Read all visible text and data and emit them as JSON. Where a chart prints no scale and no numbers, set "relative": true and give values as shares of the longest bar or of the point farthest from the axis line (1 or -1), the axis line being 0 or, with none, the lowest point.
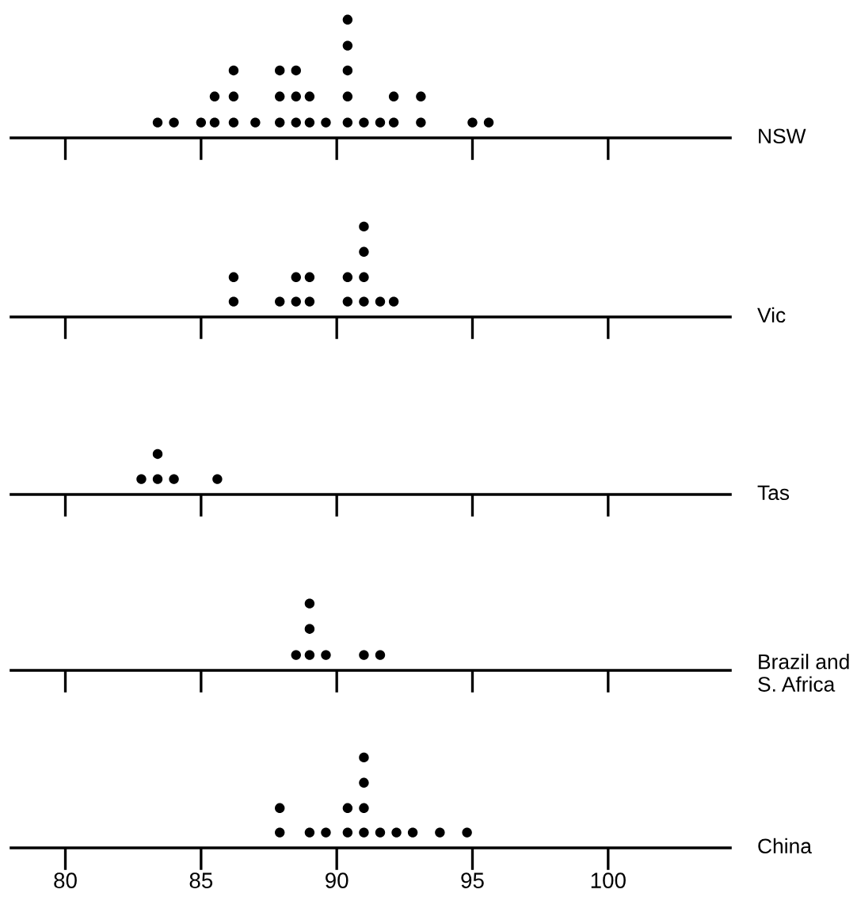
{
  "chart_data": [
    {
      "type": "scatter",
      "xlabel": "NSW",
      "relative": true,
      "marker": "circle",
      "color": "#000000",
      "xlim": [
        78,
        104.5
      ],
      "xticks": [
        {
          "value": 80,
          "label": null
        },
        {
          "value": 85,
          "label": null
        },
        {
          "value": 90,
          "label": null
        },
        {
          "value": 95,
          "label": null
        },
        {
          "value": 100,
          "label": null
        }
      ],
      "tick_labels": false,
      "x": [
        83.4,
        84.0,
        85.0,
        85.5,
        86.2,
        87.0,
        87.9,
        88.5,
        89.0,
        89.6,
        90.4,
        91.0,
        91.6,
        92.1,
        93.1,
        95.0,
        95.6,
        85.5,
        86.2,
        87.9,
        88.5,
        89.0,
        90.4,
        92.1,
        93.1,
        86.2,
        87.9,
        88.5,
        90.4,
        90.4,
        90.4
      ],
      "values": [
        0.13,
        0.13,
        0.13,
        0.13,
        0.13,
        0.13,
        0.13,
        0.13,
        0.13,
        0.13,
        0.13,
        0.13,
        0.13,
        0.13,
        0.13,
        0.13,
        0.13,
        0.35,
        0.35,
        0.35,
        0.35,
        0.35,
        0.35,
        0.35,
        0.35,
        0.57,
        0.57,
        0.57,
        0.57,
        0.78,
        1
      ]
    },
    {
      "type": "scatter",
      "xlabel": "Vic",
      "relative": true,
      "marker": "circle",
      "color": "#000000",
      "xlim": [
        78,
        104.5
      ],
      "xticks": [
        {
          "value": 80,
          "label": null
        },
        {
          "value": 85,
          "label": null
        },
        {
          "value": 90,
          "label": null
        },
        {
          "value": 95,
          "label": null
        },
        {
          "value": 100,
          "label": null
        }
      ],
      "tick_labels": false,
      "x": [
        86.2,
        87.9,
        88.5,
        89.0,
        90.4,
        91.0,
        91.6,
        92.1,
        86.2,
        88.5,
        89.0,
        90.4,
        91.0,
        91.0,
        91.0
      ],
      "values": [
        0.17,
        0.17,
        0.17,
        0.17,
        0.17,
        0.17,
        0.17,
        0.17,
        0.44,
        0.44,
        0.44,
        0.44,
        0.44,
        0.72,
        1
      ]
    },
    {
      "type": "scatter",
      "xlabel": "Tas",
      "relative": true,
      "marker": "circle",
      "color": "#000000",
      "xlim": [
        78,
        104.5
      ],
      "xticks": [
        {
          "value": 80,
          "label": null
        },
        {
          "value": 85,
          "label": null
        },
        {
          "value": 90,
          "label": null
        },
        {
          "value": 95,
          "label": null
        },
        {
          "value": 100,
          "label": null
        }
      ],
      "tick_labels": false,
      "x": [
        82.8,
        83.4,
        84.0,
        85.6,
        83.4
      ],
      "values": [
        0.38,
        0.38,
        0.38,
        0.38,
        1
      ]
    },
    {
      "type": "scatter",
      "xlabel": "Brazil and\nS. Africa",
      "relative": true,
      "marker": "circle",
      "color": "#000000",
      "xlim": [
        78,
        104.5
      ],
      "xticks": [
        {
          "value": 80,
          "label": null
        },
        {
          "value": 85,
          "label": null
        },
        {
          "value": 90,
          "label": null
        },
        {
          "value": 95,
          "label": null
        },
        {
          "value": 100,
          "label": null
        }
      ],
      "tick_labels": false,
      "x": [
        88.5,
        89.0,
        89.6,
        91.0,
        91.6,
        89.0,
        89.0
      ],
      "values": [
        0.23,
        0.23,
        0.23,
        0.23,
        0.23,
        0.62,
        1
      ]
    },
    {
      "type": "scatter",
      "xlabel": "China",
      "relative": true,
      "marker": "circle",
      "color": "#000000",
      "xlim": [
        78,
        104.5
      ],
      "xticks": [
        80,
        85,
        90,
        95,
        100
      ],
      "tick_labels": "x",
      "x": [
        87.9,
        89.0,
        89.6,
        90.4,
        91.0,
        91.6,
        92.2,
        92.8,
        93.8,
        94.8,
        87.9,
        90.4,
        91.0,
        91.0,
        91.0
      ],
      "values": [
        0.17,
        0.17,
        0.17,
        0.17,
        0.17,
        0.17,
        0.17,
        0.17,
        0.17,
        0.17,
        0.44,
        0.44,
        0.44,
        0.72,
        1
      ]
    }
  ]
}
